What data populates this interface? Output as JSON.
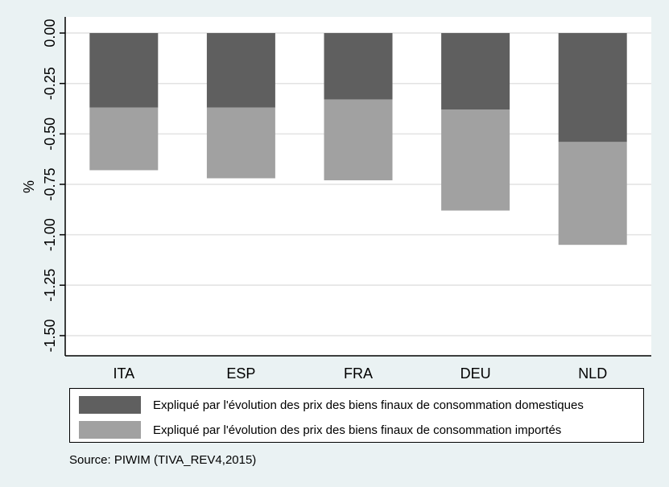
{
  "chart_data": {
    "type": "bar",
    "stacked": true,
    "categories": [
      "ITA",
      "ESP",
      "FRA",
      "DEU",
      "NLD"
    ],
    "series": [
      {
        "name": "Expliqué par l'évolution des prix des biens finaux de consommation domestiques",
        "values": [
          -0.37,
          -0.37,
          -0.33,
          -0.38,
          -0.54
        ],
        "color": "#5f5f5f"
      },
      {
        "name": "Expliqué par l'évolution des prix des biens finaux de consommation importés",
        "values": [
          -0.31,
          -0.35,
          -0.4,
          -0.5,
          -0.51
        ],
        "color": "#a1a1a1"
      }
    ],
    "ylabel": "%",
    "xlabel": "",
    "ylim": [
      -1.6,
      0.08
    ],
    "yticks": [
      "0.00",
      "-0.25",
      "-0.50",
      "-0.75",
      "-1.00",
      "-1.25",
      "-1.50"
    ],
    "grid": true,
    "legend_position": "bottom",
    "source": "Source: PIWIM (TIVA_REV4,2015)"
  }
}
